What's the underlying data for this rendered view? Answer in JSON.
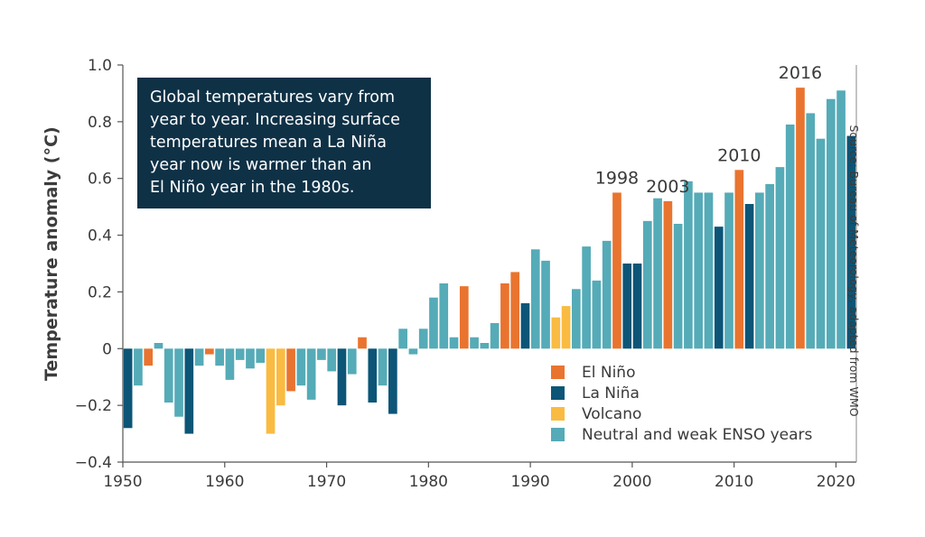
{
  "chart_data": {
    "type": "bar",
    "ylabel": "Temperature anomaly (°C)",
    "ylim": [
      -0.4,
      1.0
    ],
    "xlim": [
      1950,
      2022
    ],
    "yticks": [
      "1.0",
      "0.8",
      "0.6",
      "0.4",
      "0.2",
      "0",
      "−0.2",
      "−0.4"
    ],
    "ytick_values": [
      1.0,
      0.8,
      0.6,
      0.4,
      0.2,
      0,
      -0.2,
      -0.4
    ],
    "xticks": [
      "1950",
      "1960",
      "1970",
      "1980",
      "1990",
      "2000",
      "2010",
      "2020"
    ],
    "xtick_values": [
      1950,
      1960,
      1970,
      1980,
      1990,
      2000,
      2010,
      2020
    ],
    "grid": false,
    "legend_position": "bottom-right",
    "annotation": [
      "Global temperatures vary from",
      "year to year. Increasing surface",
      "temperatures mean a La Niña",
      "year now is warmer than an",
      "El Niño year in the 1980s."
    ],
    "source": "Source: Bureau of Meteorology, adapted from WMO",
    "categories": {
      "elnino": {
        "label": "El Niño",
        "color": "#e9742f"
      },
      "lanina": {
        "label": "La Niña",
        "color": "#0c5577"
      },
      "volcano": {
        "label": "Volcano",
        "color": "#f9bb42"
      },
      "neutral": {
        "label": "Neutral and weak ENSO years",
        "color": "#55abb7"
      }
    },
    "legend_order": [
      "elnino",
      "lanina",
      "volcano",
      "neutral"
    ],
    "year_labels": [
      {
        "year": 1998,
        "text": "1998"
      },
      {
        "year": 2003,
        "text": "2003"
      },
      {
        "year": 2010,
        "text": "2010"
      },
      {
        "year": 2016,
        "text": "2016"
      }
    ],
    "bars": [
      {
        "year": 1950,
        "value": -0.28,
        "category": "lanina"
      },
      {
        "year": 1951,
        "value": -0.13,
        "category": "neutral"
      },
      {
        "year": 1952,
        "value": -0.06,
        "category": "elnino"
      },
      {
        "year": 1953,
        "value": 0.02,
        "category": "neutral"
      },
      {
        "year": 1954,
        "value": -0.19,
        "category": "neutral"
      },
      {
        "year": 1955,
        "value": -0.24,
        "category": "neutral"
      },
      {
        "year": 1956,
        "value": -0.3,
        "category": "lanina"
      },
      {
        "year": 1957,
        "value": -0.06,
        "category": "neutral"
      },
      {
        "year": 1958,
        "value": -0.02,
        "category": "elnino"
      },
      {
        "year": 1959,
        "value": -0.06,
        "category": "neutral"
      },
      {
        "year": 1960,
        "value": -0.11,
        "category": "neutral"
      },
      {
        "year": 1961,
        "value": -0.04,
        "category": "neutral"
      },
      {
        "year": 1962,
        "value": -0.07,
        "category": "neutral"
      },
      {
        "year": 1963,
        "value": -0.05,
        "category": "neutral"
      },
      {
        "year": 1964,
        "value": -0.3,
        "category": "volcano"
      },
      {
        "year": 1965,
        "value": -0.2,
        "category": "volcano"
      },
      {
        "year": 1966,
        "value": -0.15,
        "category": "elnino"
      },
      {
        "year": 1967,
        "value": -0.13,
        "category": "neutral"
      },
      {
        "year": 1968,
        "value": -0.18,
        "category": "neutral"
      },
      {
        "year": 1969,
        "value": -0.04,
        "category": "neutral"
      },
      {
        "year": 1970,
        "value": -0.08,
        "category": "neutral"
      },
      {
        "year": 1971,
        "value": -0.2,
        "category": "lanina"
      },
      {
        "year": 1972,
        "value": -0.09,
        "category": "neutral"
      },
      {
        "year": 1973,
        "value": 0.04,
        "category": "elnino"
      },
      {
        "year": 1974,
        "value": -0.19,
        "category": "lanina"
      },
      {
        "year": 1975,
        "value": -0.13,
        "category": "neutral"
      },
      {
        "year": 1976,
        "value": -0.23,
        "category": "lanina"
      },
      {
        "year": 1977,
        "value": 0.07,
        "category": "neutral"
      },
      {
        "year": 1978,
        "value": -0.02,
        "category": "neutral"
      },
      {
        "year": 1979,
        "value": 0.07,
        "category": "neutral"
      },
      {
        "year": 1980,
        "value": 0.18,
        "category": "neutral"
      },
      {
        "year": 1981,
        "value": 0.23,
        "category": "neutral"
      },
      {
        "year": 1982,
        "value": 0.04,
        "category": "neutral"
      },
      {
        "year": 1983,
        "value": 0.22,
        "category": "elnino"
      },
      {
        "year": 1984,
        "value": 0.04,
        "category": "neutral"
      },
      {
        "year": 1985,
        "value": 0.02,
        "category": "neutral"
      },
      {
        "year": 1986,
        "value": 0.09,
        "category": "neutral"
      },
      {
        "year": 1987,
        "value": 0.23,
        "category": "elnino"
      },
      {
        "year": 1988,
        "value": 0.27,
        "category": "elnino"
      },
      {
        "year": 1989,
        "value": 0.16,
        "category": "lanina"
      },
      {
        "year": 1990,
        "value": 0.35,
        "category": "neutral"
      },
      {
        "year": 1991,
        "value": 0.31,
        "category": "neutral"
      },
      {
        "year": 1992,
        "value": 0.11,
        "category": "volcano"
      },
      {
        "year": 1993,
        "value": 0.15,
        "category": "volcano"
      },
      {
        "year": 1994,
        "value": 0.21,
        "category": "neutral"
      },
      {
        "year": 1995,
        "value": 0.36,
        "category": "neutral"
      },
      {
        "year": 1996,
        "value": 0.24,
        "category": "neutral"
      },
      {
        "year": 1997,
        "value": 0.38,
        "category": "neutral"
      },
      {
        "year": 1998,
        "value": 0.55,
        "category": "elnino"
      },
      {
        "year": 1999,
        "value": 0.3,
        "category": "lanina"
      },
      {
        "year": 2000,
        "value": 0.3,
        "category": "lanina"
      },
      {
        "year": 2001,
        "value": 0.45,
        "category": "neutral"
      },
      {
        "year": 2002,
        "value": 0.53,
        "category": "neutral"
      },
      {
        "year": 2003,
        "value": 0.52,
        "category": "elnino"
      },
      {
        "year": 2004,
        "value": 0.44,
        "category": "neutral"
      },
      {
        "year": 2005,
        "value": 0.59,
        "category": "neutral"
      },
      {
        "year": 2006,
        "value": 0.55,
        "category": "neutral"
      },
      {
        "year": 2007,
        "value": 0.55,
        "category": "neutral"
      },
      {
        "year": 2008,
        "value": 0.43,
        "category": "lanina"
      },
      {
        "year": 2009,
        "value": 0.55,
        "category": "neutral"
      },
      {
        "year": 2010,
        "value": 0.63,
        "category": "elnino"
      },
      {
        "year": 2011,
        "value": 0.51,
        "category": "lanina"
      },
      {
        "year": 2012,
        "value": 0.55,
        "category": "neutral"
      },
      {
        "year": 2013,
        "value": 0.58,
        "category": "neutral"
      },
      {
        "year": 2014,
        "value": 0.64,
        "category": "neutral"
      },
      {
        "year": 2015,
        "value": 0.79,
        "category": "neutral"
      },
      {
        "year": 2016,
        "value": 0.92,
        "category": "elnino"
      },
      {
        "year": 2017,
        "value": 0.83,
        "category": "neutral"
      },
      {
        "year": 2018,
        "value": 0.74,
        "category": "neutral"
      },
      {
        "year": 2019,
        "value": 0.88,
        "category": "neutral"
      },
      {
        "year": 2020,
        "value": 0.91,
        "category": "neutral"
      },
      {
        "year": 2021,
        "value": 0.75,
        "category": "lanina"
      }
    ]
  }
}
